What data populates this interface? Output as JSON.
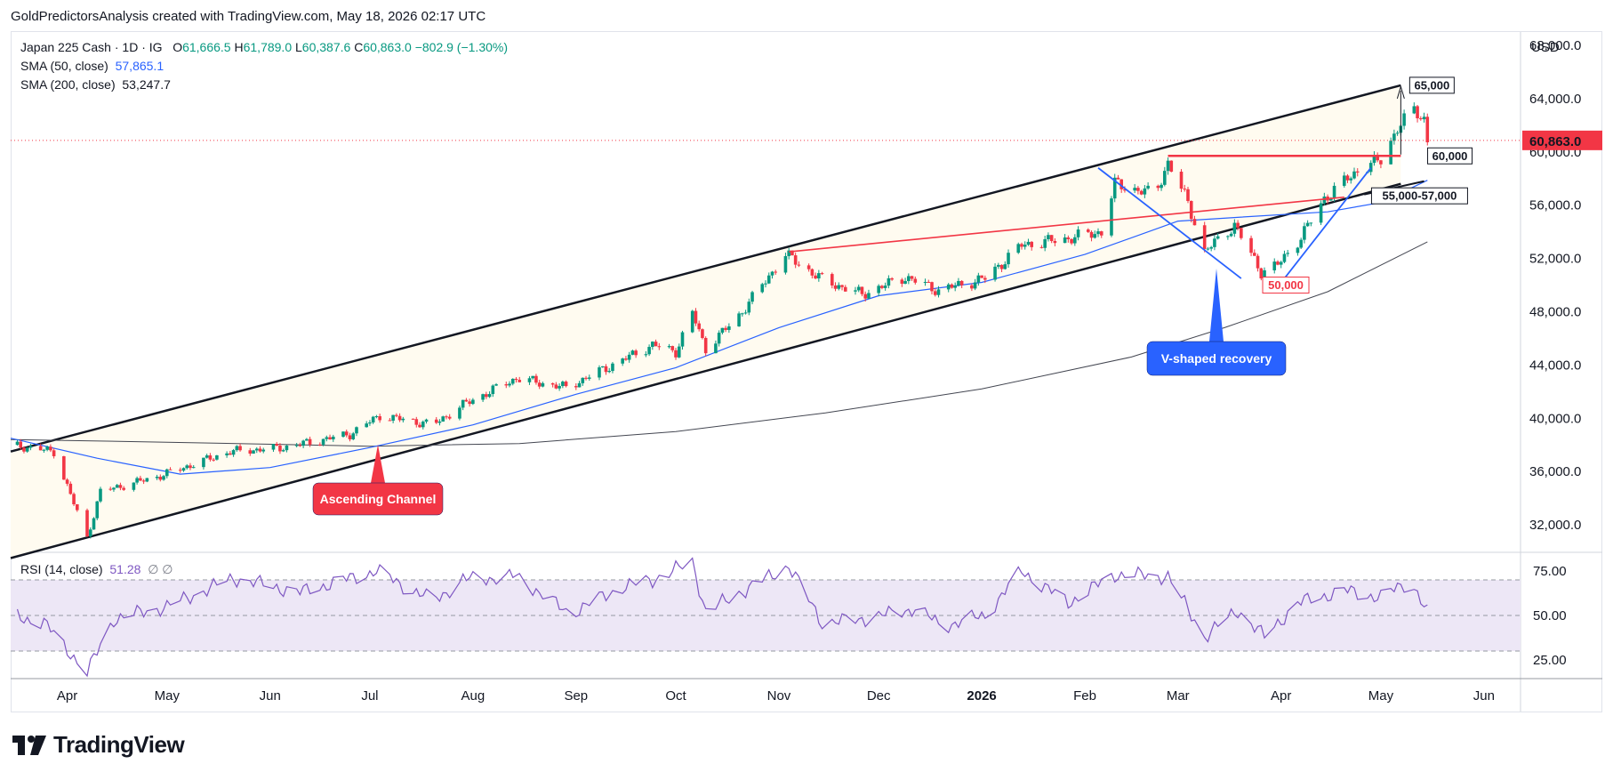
{
  "header": {
    "text": "GoldPredictorsAnalysis created with TradingView.com, May 18, 2026 02:17 UTC"
  },
  "legend": {
    "symbol": "Japan 225 Cash · 1D · IG",
    "o_label": "O",
    "o_val": "61,666.5",
    "h_label": "H",
    "h_val": "61,789.0",
    "l_label": "L",
    "l_val": "60,387.6",
    "c_label": "C",
    "c_val": "60,863.0",
    "change": "−802.9 (−1.30%)",
    "sma50_label": "SMA (50, close)",
    "sma50_val": "57,865.1",
    "sma200_label": "SMA (200, close)",
    "sma200_val": "53,247.7",
    "rsi_label": "RSI (14, close)",
    "rsi_val": "51.28",
    "rsi_extra": "∅ ∅"
  },
  "colors": {
    "up": "#089981",
    "down": "#f23645",
    "sma50": "#2962ff",
    "sma200": "#434651",
    "rsi": "#7e57c2",
    "rsi_band": "#ede7f6",
    "channel_fill": "#fffbf0",
    "callout_red": "#f23645",
    "callout_blue": "#2962ff",
    "price_tag": "#f23645"
  },
  "price_axis": {
    "currency": "USD",
    "ticks": [
      "68,000.0",
      "64,000.0",
      "60,000.0",
      "56,000.0",
      "52,000.0",
      "48,000.0",
      "44,000.0",
      "40,000.0",
      "36,000.0",
      "32,000.0"
    ],
    "last_price": "60,863.0"
  },
  "rsi_axis": {
    "ticks": [
      "75.00",
      "50.00",
      "25.00"
    ]
  },
  "time_axis": {
    "labels": [
      "Apr",
      "May",
      "Jun",
      "Jul",
      "Aug",
      "Sep",
      "Oct",
      "Nov",
      "Dec",
      "2026",
      "Feb",
      "Mar",
      "Apr",
      "May",
      "Jun"
    ]
  },
  "annotations": {
    "ascending_channel": "Ascending Channel",
    "v_shaped": "V-shaped recovery",
    "level_65000": "65,000",
    "level_60000": "60,000",
    "level_55_57": "55,000-57,000",
    "level_50000": "50,000"
  },
  "chart_data": {
    "type": "candlestick",
    "title": "Japan 225 Cash · 1D · IG",
    "ylim": [
      30000,
      69000
    ],
    "rsi_ylim": [
      15,
      85
    ],
    "x_range": [
      "2025-03-15",
      "2026-06-12"
    ],
    "channel": {
      "upper": [
        [
          "2025-03-15",
          37500
        ],
        [
          "2026-05-07",
          65000
        ]
      ],
      "lower": [
        [
          "2025-03-15",
          29500
        ],
        [
          "2026-05-07",
          57600
        ]
      ]
    },
    "red_lines": [
      {
        "from": [
          "2025-11-04",
          52500
        ],
        "to": [
          "2026-04-20",
          56600
        ]
      },
      {
        "from": [
          "2026-02-26",
          59700
        ],
        "to": [
          "2026-05-07",
          59700
        ]
      }
    ],
    "series": [
      {
        "name": "Price",
        "kind": "ohlc",
        "keypoints": [
          [
            "2025-03-15",
            38000
          ],
          [
            "2025-03-28",
            37500
          ],
          [
            "2025-04-07",
            31000
          ],
          [
            "2025-04-11",
            34500
          ],
          [
            "2025-04-28",
            35600
          ],
          [
            "2025-05-20",
            37500
          ],
          [
            "2025-06-05",
            37800
          ],
          [
            "2025-06-25",
            38800
          ],
          [
            "2025-07-04",
            40200
          ],
          [
            "2025-07-20",
            39500
          ],
          [
            "2025-07-29",
            41000
          ],
          [
            "2025-08-14",
            43000
          ],
          [
            "2025-08-29",
            42300
          ],
          [
            "2025-09-12",
            44000
          ],
          [
            "2025-09-24",
            45500
          ],
          [
            "2025-10-01",
            45000
          ],
          [
            "2025-10-06",
            47900
          ],
          [
            "2025-10-10",
            45200
          ],
          [
            "2025-10-20",
            47700
          ],
          [
            "2025-11-03",
            52300
          ],
          [
            "2025-11-14",
            50400
          ],
          [
            "2025-11-26",
            49300
          ],
          [
            "2025-12-09",
            50600
          ],
          [
            "2025-12-19",
            49600
          ],
          [
            "2026-01-02",
            50500
          ],
          [
            "2026-01-13",
            53000
          ],
          [
            "2026-01-27",
            53500
          ],
          [
            "2026-02-06",
            54000
          ],
          [
            "2026-02-10",
            57600
          ],
          [
            "2026-02-22",
            56800
          ],
          [
            "2026-02-26",
            59200
          ],
          [
            "2026-03-04",
            56200
          ],
          [
            "2026-03-09",
            52500
          ],
          [
            "2026-03-18",
            54500
          ],
          [
            "2026-03-26",
            51000
          ],
          [
            "2026-03-31",
            51500
          ],
          [
            "2026-04-07",
            53600
          ],
          [
            "2026-04-14",
            56500
          ],
          [
            "2026-04-24",
            58600
          ],
          [
            "2026-05-01",
            59400
          ],
          [
            "2026-05-06",
            61800
          ],
          [
            "2026-05-11",
            63100
          ],
          [
            "2026-05-14",
            62500
          ],
          [
            "2026-05-15",
            60863
          ]
        ]
      },
      {
        "name": "SMA (50, close)",
        "keypoints": [
          [
            "2025-03-15",
            38500
          ],
          [
            "2025-04-10",
            37000
          ],
          [
            "2025-05-05",
            35800
          ],
          [
            "2025-06-01",
            36300
          ],
          [
            "2025-07-01",
            37800
          ],
          [
            "2025-08-01",
            39500
          ],
          [
            "2025-09-01",
            41800
          ],
          [
            "2025-10-01",
            43800
          ],
          [
            "2025-11-01",
            46800
          ],
          [
            "2025-12-01",
            49200
          ],
          [
            "2026-01-01",
            50200
          ],
          [
            "2026-02-01",
            52300
          ],
          [
            "2026-03-01",
            54800
          ],
          [
            "2026-03-20",
            55100
          ],
          [
            "2026-04-15",
            55500
          ],
          [
            "2026-05-01",
            56200
          ],
          [
            "2026-05-15",
            57865
          ]
        ]
      },
      {
        "name": "SMA (200, close)",
        "keypoints": [
          [
            "2025-03-15",
            38400
          ],
          [
            "2025-05-01",
            38200
          ],
          [
            "2025-07-01",
            37900
          ],
          [
            "2025-08-15",
            38100
          ],
          [
            "2025-10-01",
            39000
          ],
          [
            "2025-11-15",
            40400
          ],
          [
            "2026-01-01",
            42200
          ],
          [
            "2026-02-15",
            44600
          ],
          [
            "2026-03-15",
            46800
          ],
          [
            "2026-04-15",
            49500
          ],
          [
            "2026-05-15",
            53248
          ]
        ]
      },
      {
        "name": "RSI (14, close)",
        "keypoints": [
          [
            "2025-03-15",
            50
          ],
          [
            "2025-03-25",
            46
          ],
          [
            "2025-04-07",
            18
          ],
          [
            "2025-04-15",
            48
          ],
          [
            "2025-05-01",
            55
          ],
          [
            "2025-05-21",
            71
          ],
          [
            "2025-06-10",
            63
          ],
          [
            "2025-07-03",
            75
          ],
          [
            "2025-07-20",
            58
          ],
          [
            "2025-07-29",
            70
          ],
          [
            "2025-08-14",
            72
          ],
          [
            "2025-08-30",
            51
          ],
          [
            "2025-09-15",
            66
          ],
          [
            "2025-09-24",
            70
          ],
          [
            "2025-10-06",
            80
          ],
          [
            "2025-10-10",
            52
          ],
          [
            "2025-11-04",
            78
          ],
          [
            "2025-11-14",
            46
          ],
          [
            "2025-11-27",
            48
          ],
          [
            "2025-12-12",
            54
          ],
          [
            "2025-12-20",
            44
          ],
          [
            "2026-01-02",
            50
          ],
          [
            "2026-01-13",
            75
          ],
          [
            "2026-01-27",
            57
          ],
          [
            "2026-02-10",
            73
          ],
          [
            "2026-02-26",
            72
          ],
          [
            "2026-03-09",
            38
          ],
          [
            "2026-03-19",
            53
          ],
          [
            "2026-03-27",
            38
          ],
          [
            "2026-04-06",
            57
          ],
          [
            "2026-04-20",
            64
          ],
          [
            "2026-05-01",
            60
          ],
          [
            "2026-05-10",
            70
          ],
          [
            "2026-05-15",
            51
          ]
        ]
      }
    ]
  }
}
